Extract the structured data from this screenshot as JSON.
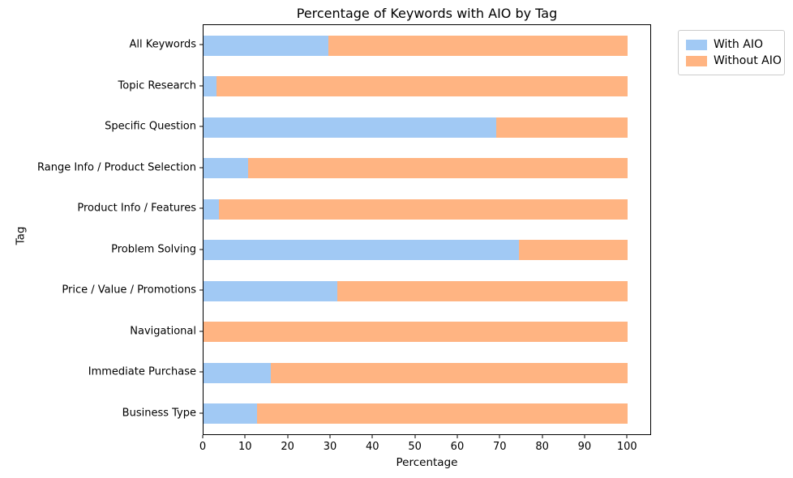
{
  "chart_data": {
    "type": "bar",
    "orientation": "horizontal",
    "stacked": true,
    "title": "Percentage of Keywords with AIO by Tag",
    "xlabel": "Percentage",
    "ylabel": "Tag",
    "xlim": [
      0,
      105.3
    ],
    "xticks": [
      0,
      10,
      20,
      30,
      40,
      50,
      60,
      70,
      80,
      90,
      100
    ],
    "grid": false,
    "categories": [
      "All Keywords",
      "Topic Research",
      "Specific Question",
      "Range Info / Product Selection",
      "Product Info / Features",
      "Problem Solving",
      "Price / Value / Promotions",
      "Navigational",
      "Immediate Purchase",
      "Business Type"
    ],
    "series": [
      {
        "name": "With AIO",
        "color": "#a1c9f4",
        "values": [
          29.5,
          3.0,
          69.0,
          10.5,
          3.6,
          74.3,
          31.6,
          0.0,
          15.9,
          12.6
        ]
      },
      {
        "name": "Without AIO",
        "color": "#ffb482",
        "values": [
          70.5,
          97.0,
          31.0,
          89.5,
          96.4,
          25.7,
          68.4,
          100.0,
          84.1,
          87.4
        ]
      }
    ],
    "legend": {
      "position": "upper-right-outside",
      "entries": [
        "With AIO",
        "Without AIO"
      ]
    }
  }
}
